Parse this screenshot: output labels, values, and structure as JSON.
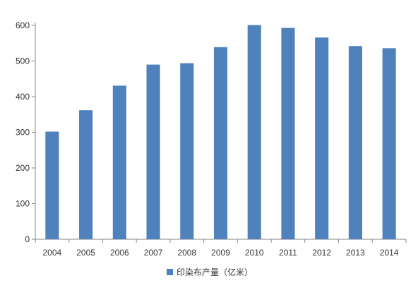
{
  "chart_data": {
    "type": "bar",
    "title": "",
    "xlabel": "",
    "ylabel": "",
    "categories": [
      "2004",
      "2005",
      "2006",
      "2007",
      "2008",
      "2009",
      "2010",
      "2011",
      "2012",
      "2013",
      "2014"
    ],
    "series": [
      {
        "name": "印染布产量（亿米）",
        "color": "#4F81BD",
        "values": [
          302,
          362,
          431,
          490,
          494,
          539,
          601,
          593,
          566,
          542,
          536
        ]
      }
    ],
    "ylim": [
      0,
      600
    ],
    "yticks": [
      0,
      100,
      200,
      300,
      400,
      500,
      600
    ],
    "grid": false,
    "legend_position": "bottom"
  }
}
